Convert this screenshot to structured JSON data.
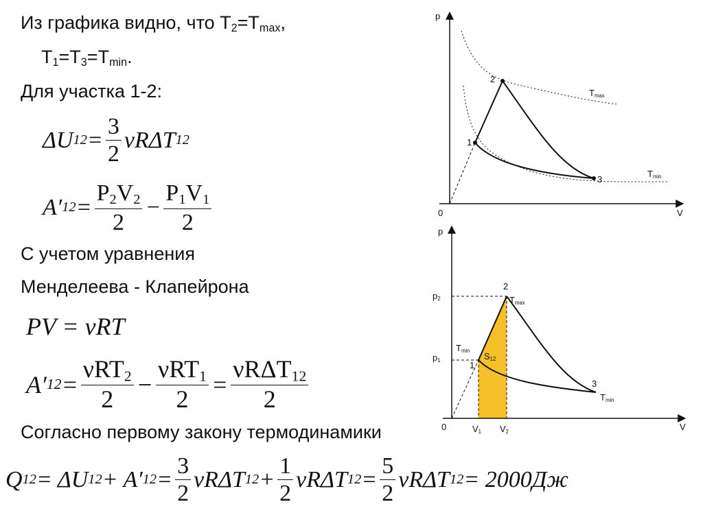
{
  "text_lines": [
    [
      {
        "text": "Из графика видно, что T",
        "sub": "2"
      },
      {
        "text": "=T",
        "sub": "max"
      },
      {
        "text": ","
      }
    ],
    [
      {
        "text": "T",
        "sub": "1"
      },
      {
        "text": "=T",
        "sub": "3"
      },
      {
        "text": "=T",
        "sub": "min"
      },
      {
        "text": "."
      }
    ],
    [
      {
        "text": "Для участка 1-2:"
      }
    ],
    [
      {
        "text": "С учетом уравнения"
      }
    ],
    [
      {
        "text": "Менделеева - Клапейрона"
      }
    ],
    [
      {
        "text": "Согласно первому закону термодинамики"
      }
    ]
  ],
  "formulas": [
    [
      {
        "text": "ΔU",
        "sub": "12"
      },
      {
        "text": " = "
      },
      {
        "num": [
          {
            "text": "3"
          }
        ],
        "den": [
          {
            "text": "2"
          }
        ]
      },
      {
        "text": "νRΔT",
        "sub": "12"
      }
    ],
    [
      {
        "text": "A′",
        "sub": "12"
      },
      {
        "text": " = "
      },
      {
        "num": [
          {
            "text": "P",
            "sub": "2"
          },
          {
            "text": "V",
            "sub": "2"
          }
        ],
        "den": [
          {
            "text": "2"
          }
        ]
      },
      {
        "text": " − "
      },
      {
        "num": [
          {
            "text": "P",
            "sub": "1"
          },
          {
            "text": "V",
            "sub": "1"
          }
        ],
        "den": [
          {
            "text": "2"
          }
        ]
      }
    ],
    [
      {
        "text": "PV = νRT"
      }
    ],
    [
      {
        "text": "A′",
        "sub": "12"
      },
      {
        "text": " = "
      },
      {
        "num": [
          {
            "text": "νRT",
            "sub": "2"
          }
        ],
        "den": [
          {
            "text": "2"
          }
        ]
      },
      {
        "text": " − "
      },
      {
        "num": [
          {
            "text": "νRT",
            "sub": "1"
          }
        ],
        "den": [
          {
            "text": "2"
          }
        ]
      },
      {
        "text": " = "
      },
      {
        "num": [
          {
            "text": "νRΔT",
            "sub": "12"
          }
        ],
        "den": [
          {
            "text": "2"
          }
        ]
      }
    ],
    [
      {
        "text": "Q",
        "sub": "12"
      },
      {
        "text": " = ΔU",
        "sub": "12"
      },
      {
        "text": " + A′",
        "sub": "12"
      },
      {
        "text": " = "
      },
      {
        "num": [
          {
            "text": "3"
          }
        ],
        "den": [
          {
            "text": "2"
          }
        ]
      },
      {
        "text": "νRΔT",
        "sub": "12"
      },
      {
        "text": " + "
      },
      {
        "num": [
          {
            "text": "1"
          }
        ],
        "den": [
          {
            "text": "2"
          }
        ]
      },
      {
        "text": "νRΔT",
        "sub": "12"
      },
      {
        "text": " = "
      },
      {
        "num": [
          {
            "text": "5"
          }
        ],
        "den": [
          {
            "text": "2"
          }
        ]
      },
      {
        "text": "νRΔT",
        "sub": "12"
      },
      {
        "text": " = 2000Дж"
      }
    ]
  ],
  "diagram_top": {
    "labels": [
      {
        "text": "p"
      },
      {
        "text": "0"
      },
      {
        "text": "V"
      },
      {
        "text": "1"
      },
      {
        "text": "2"
      },
      {
        "text": "3"
      },
      {
        "text": "T",
        "sub": "max"
      },
      {
        "text": "T",
        "sub": "min"
      }
    ]
  },
  "diagram_bottom": {
    "labels": [
      {
        "text": "p"
      },
      {
        "text": "0"
      },
      {
        "text": "V"
      },
      {
        "text": "p",
        "sub": "2"
      },
      {
        "text": "p",
        "sub": "1"
      },
      {
        "text": "V",
        "sub": "1"
      },
      {
        "text": "V",
        "sub": "2"
      },
      {
        "text": "2"
      },
      {
        "text": "1"
      },
      {
        "text": "3"
      },
      {
        "text": "T",
        "sub": "max"
      },
      {
        "text": "T",
        "sub": "min"
      },
      {
        "text": "S",
        "sub": "12"
      },
      {
        "text": "T",
        "sub": "min"
      }
    ]
  }
}
